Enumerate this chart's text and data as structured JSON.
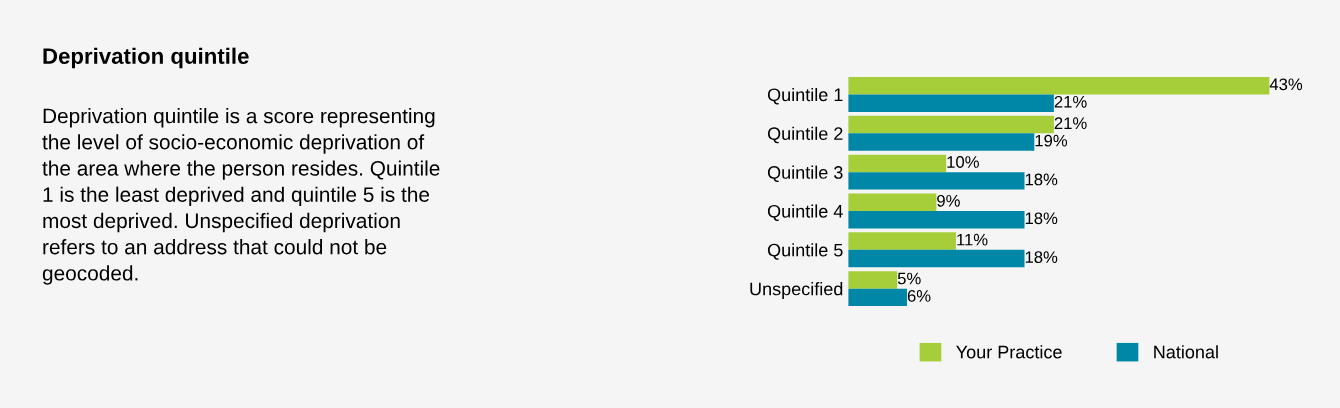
{
  "chart_data": {
    "type": "bar",
    "orientation": "horizontal",
    "title": "Deprivation quintile",
    "subtitle": "Deprivation quintile is a score representing\nthe level of socio-economic deprivation of\nthe area where the person resides. Quintile\n1 is the least deprived and quintile 5 is the\nmost deprived. Unspecified deprivation\nrefers to an address that could not be\ngeocoded.",
    "categories": [
      "Quintile 1",
      "Quintile 2",
      "Quintile 3",
      "Quintile 4",
      "Quintile 5",
      "Unspecified"
    ],
    "series": [
      {
        "name": "Your Practice",
        "color": "#a6ce39",
        "values": [
          43,
          21,
          10,
          9,
          11,
          5
        ],
        "value_labels": [
          "43%",
          "21%",
          "10%",
          "9%",
          "11%",
          "5%"
        ]
      },
      {
        "name": "National",
        "color": "#0087a8",
        "values": [
          21,
          19,
          18,
          18,
          18,
          6
        ],
        "value_labels": [
          "21%",
          "19%",
          "18%",
          "18%",
          "18%",
          "6%"
        ]
      }
    ],
    "tick_labels": "y",
    "grid": false,
    "legend": "bottom"
  }
}
